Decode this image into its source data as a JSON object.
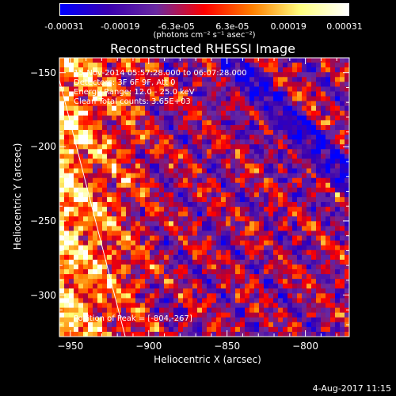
{
  "colorbar": {
    "tick_labels": [
      "-0.00031",
      "-0.00019",
      "-6.3e-05",
      "6.3e-05",
      "0.00019",
      "0.00031"
    ],
    "units": "(photons cm⁻² s⁻¹ asec⁻²)",
    "colors": [
      "#0000ff",
      "#3a00b0",
      "#6a2aa0",
      "#ff0000",
      "#ff8000",
      "#ffff80",
      "#ffffff"
    ]
  },
  "annotations": {
    "time_range": "15-Nov-2014 05:57:28.000 to 06:07:28.000",
    "detectors": "Detectors: 3F 6F 9F, Att 0",
    "energy_range": "Energy Range: 12.0 - 25.0 keV",
    "clean": "Clean    Total counts: 3.65E+03",
    "peak": "Position of Peak = [-804,-267]"
  },
  "date_stamp": "4-Aug-2017 11:15",
  "chart_data": {
    "type": "heatmap",
    "title": "Reconstructed RHESSI Image",
    "xlabel": "Heliocentric X (arcsec)",
    "ylabel": "Heliocentric Y (arcsec)",
    "xlim": [
      -957,
      -772
    ],
    "ylim": [
      -328,
      -140
    ],
    "xticks": [
      -950,
      -900,
      -850,
      -800
    ],
    "yticks": [
      -150,
      -200,
      -250,
      -300
    ],
    "value_range": [
      -0.00031,
      0.00031
    ],
    "limb_line": {
      "x": [
        -957,
        -915
      ],
      "y": [
        -155,
        -328
      ]
    },
    "peak_position": [
      -804,
      -267
    ]
  }
}
